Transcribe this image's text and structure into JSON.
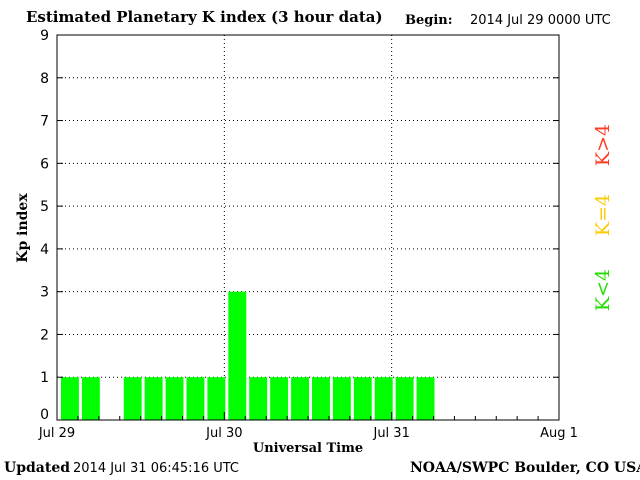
{
  "header": {
    "title": "Estimated Planetary K index (3 hour data)",
    "begin_label": "Begin:",
    "begin_value": "2014 Jul 29 0000 UTC"
  },
  "footer": {
    "updated_label": "Updated",
    "updated_value": "2014 Jul 31 06:45:16 UTC",
    "source": "NOAA/SWPC Boulder, CO USA"
  },
  "chart_data": {
    "type": "bar",
    "title": "Estimated Planetary K index (3 hour data)",
    "xlabel": "Universal Time",
    "ylabel": "Kp index",
    "ylim": [
      0,
      9
    ],
    "xlim_days": [
      0,
      3
    ],
    "yticks": [
      "0",
      "1",
      "2",
      "3",
      "4",
      "5",
      "6",
      "7",
      "8",
      "9"
    ],
    "xticks": [
      "Jul 29",
      "Jul 30",
      "Jul 31",
      "Aug 1"
    ],
    "grid": true,
    "bar_color": "#00ff00",
    "categories": [
      "Jul 29 00",
      "Jul 29 03",
      "Jul 29 06",
      "Jul 29 09",
      "Jul 29 12",
      "Jul 29 15",
      "Jul 29 18",
      "Jul 29 21",
      "Jul 30 00",
      "Jul 30 03",
      "Jul 30 06",
      "Jul 30 09",
      "Jul 30 12",
      "Jul 30 15",
      "Jul 30 18",
      "Jul 30 21",
      "Jul 31 00",
      "Jul 31 03"
    ],
    "values": [
      1,
      1,
      null,
      1,
      1,
      1,
      1,
      1,
      3,
      1,
      1,
      1,
      1,
      1,
      1,
      1,
      1,
      1
    ],
    "legend": [
      {
        "label": "K>4",
        "color": "#ff3b1f"
      },
      {
        "label": "K=4",
        "color": "#ffcc00"
      },
      {
        "label": "K<4",
        "color": "#22dd00"
      }
    ]
  }
}
